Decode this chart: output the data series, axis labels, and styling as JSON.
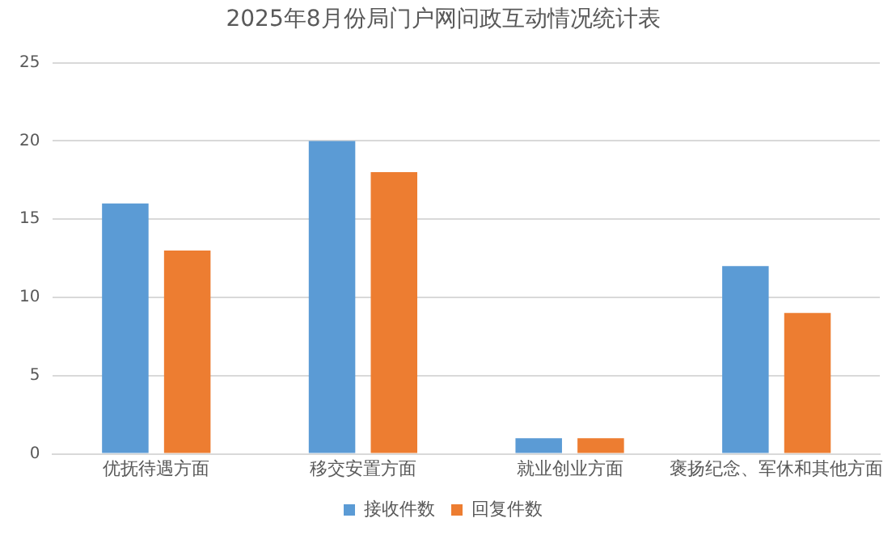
{
  "chart_data": {
    "type": "bar",
    "title": "2025年8月份局门户网问政互动情况统计表",
    "categories": [
      "优抚待遇方面",
      "移交安置方面",
      "就业创业方面",
      "褒扬纪念、军休和其他方面"
    ],
    "series": [
      {
        "name": "接收件数",
        "color": "#5b9bd5",
        "values": [
          16,
          20,
          1,
          12
        ]
      },
      {
        "name": "回复件数",
        "color": "#ed7d31",
        "values": [
          13,
          18,
          1,
          9
        ]
      }
    ],
    "ylim": [
      0,
      25
    ],
    "yticks": [
      0,
      5,
      10,
      15,
      20,
      25
    ],
    "grid": "y",
    "legend": "bottom"
  }
}
